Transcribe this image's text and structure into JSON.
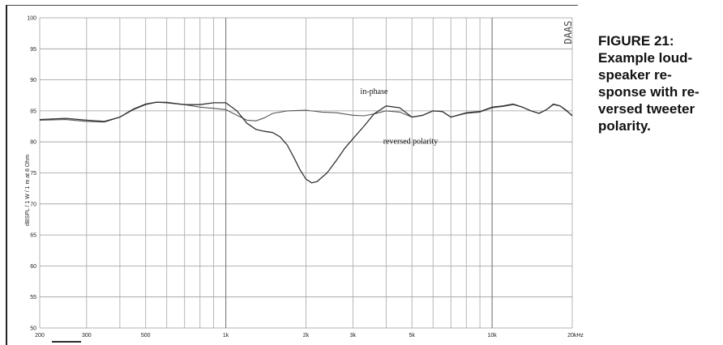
{
  "figure": {
    "caption_lines": [
      "FIGURE 21:",
      "Example loud-",
      "speaker re-",
      "sponse with re-",
      "versed tweeter",
      "polarity."
    ]
  },
  "chart_data": {
    "type": "line",
    "title": "",
    "xlabel": "",
    "ylabel": "dBSPL / 1 W / 1 m at 8 Ohm",
    "watermark": "DAAS",
    "x_scale": "log",
    "xlim": [
      200,
      20000
    ],
    "ylim": [
      50,
      100
    ],
    "grid": true,
    "x_tick_labels": [
      {
        "value": 200,
        "label": "200"
      },
      {
        "value": 300,
        "label": "300"
      },
      {
        "value": 500,
        "label": "500"
      },
      {
        "value": 1000,
        "label": "1k"
      },
      {
        "value": 2000,
        "label": "2k"
      },
      {
        "value": 3000,
        "label": "3k"
      },
      {
        "value": 5000,
        "label": "5k"
      },
      {
        "value": 10000,
        "label": "10k"
      },
      {
        "value": 20000,
        "label": "20kHz"
      }
    ],
    "y_ticks": [
      50,
      55,
      60,
      65,
      70,
      75,
      80,
      85,
      90,
      95,
      100
    ],
    "series": [
      {
        "name": "in-phase",
        "color": "#555555",
        "x": [
          200,
          250,
          300,
          350,
          400,
          450,
          500,
          550,
          600,
          700,
          800,
          900,
          1000,
          1100,
          1200,
          1300,
          1400,
          1500,
          1700,
          2000,
          2300,
          2600,
          3000,
          3300,
          3600,
          4000,
          4500,
          5000,
          5500,
          6000,
          6500,
          7000,
          8000,
          9000,
          10000,
          11000,
          12000,
          13000,
          14000,
          15000,
          16000,
          17000,
          18000,
          19000,
          20000
        ],
        "y": [
          83.5,
          83.6,
          83.3,
          83.2,
          84.0,
          85.2,
          86.0,
          86.4,
          86.4,
          86.0,
          85.6,
          85.4,
          85.2,
          84.3,
          83.5,
          83.4,
          83.9,
          84.6,
          85.0,
          85.1,
          84.8,
          84.7,
          84.3,
          84.2,
          84.5,
          85.0,
          84.8,
          84.0,
          84.3,
          85.0,
          84.9,
          84.0,
          84.6,
          84.8,
          85.5,
          85.7,
          86.0,
          85.6,
          85.0,
          84.6,
          85.2,
          86.0,
          85.8,
          85.0,
          84.3
        ]
      },
      {
        "name": "reversed polarity",
        "color": "#333333",
        "x": [
          200,
          250,
          300,
          350,
          400,
          450,
          500,
          550,
          600,
          700,
          800,
          900,
          1000,
          1100,
          1200,
          1300,
          1400,
          1500,
          1600,
          1700,
          1800,
          1900,
          2000,
          2100,
          2200,
          2400,
          2600,
          2800,
          3000,
          3300,
          3600,
          4000,
          4500,
          5000,
          5500,
          6000,
          6500,
          7000,
          8000,
          9000,
          10000,
          11000,
          12000,
          13000,
          14000,
          15000,
          16000,
          17000,
          18000,
          19000,
          20000
        ],
        "y": [
          83.6,
          83.8,
          83.5,
          83.3,
          84.0,
          85.3,
          86.1,
          86.4,
          86.3,
          86.0,
          86.0,
          86.3,
          86.3,
          85.0,
          83.0,
          82.0,
          81.7,
          81.5,
          80.8,
          79.5,
          77.5,
          75.5,
          74.0,
          73.4,
          73.6,
          75.0,
          77.0,
          79.0,
          80.5,
          82.5,
          84.5,
          85.8,
          85.5,
          84.0,
          84.3,
          85.0,
          84.9,
          84.0,
          84.7,
          84.9,
          85.6,
          85.8,
          86.1,
          85.6,
          85.0,
          84.6,
          85.2,
          86.1,
          85.8,
          85.1,
          84.2
        ]
      }
    ],
    "annotations": [
      {
        "text": "in-phase",
        "x": 3200,
        "y": 87.7
      },
      {
        "text": "reversed polarity",
        "x": 3900,
        "y": 79.7
      }
    ]
  }
}
